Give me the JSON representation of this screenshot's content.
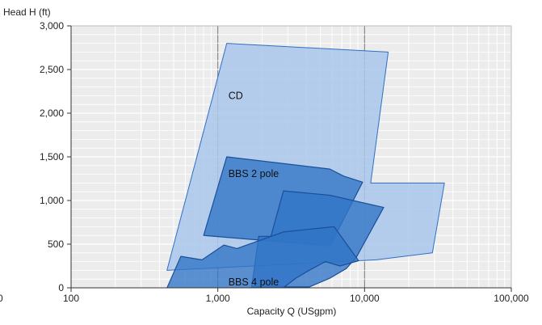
{
  "chart_data": {
    "type": "area",
    "title": "",
    "xlabel": "Capacity Q (USgpm)",
    "ylabel": "Head H (ft)",
    "x_scale": "log",
    "xlim": [
      100,
      100000
    ],
    "ylim": [
      0,
      3000
    ],
    "x_ticks": [
      100,
      1000,
      10000,
      100000
    ],
    "x_tick_labels": [
      "100",
      "1,000",
      "10,000",
      "100,000"
    ],
    "x_edge_label": "0",
    "y_ticks": [
      0,
      500,
      1000,
      1500,
      2000,
      2500,
      3000
    ],
    "y_tick_labels": [
      "0",
      "500",
      "1,000",
      "1,500",
      "2,000",
      "2,500",
      "3,000"
    ],
    "grid": true,
    "legend": "none",
    "series": [
      {
        "name": "CD",
        "color": "#aac7eb",
        "stroke": "#2e6fc4",
        "points": [
          [
            1150,
            2800
          ],
          [
            14500,
            2700
          ],
          [
            11000,
            1200
          ],
          [
            35000,
            1200
          ],
          [
            29000,
            400
          ],
          [
            12000,
            320
          ],
          [
            450,
            200
          ]
        ]
      },
      {
        "name": "BBS 2 pole",
        "color": "#2f74c6",
        "stroke": "#1a4f9a",
        "points": [
          [
            1150,
            1500
          ],
          [
            5800,
            1360
          ],
          [
            7200,
            1280
          ],
          [
            9700,
            1210
          ],
          [
            5800,
            480
          ],
          [
            800,
            600
          ]
        ]
      },
      {
        "name": "",
        "color": "#2f74c6",
        "stroke": "#1a4f9a",
        "points": [
          [
            2800,
            1110
          ],
          [
            5800,
            1060
          ],
          [
            13500,
            920
          ],
          [
            8800,
            350
          ],
          [
            7500,
            220
          ],
          [
            5800,
            110
          ],
          [
            4200,
            10
          ],
          [
            1700,
            10
          ],
          [
            1900,
            590
          ],
          [
            2300,
            590
          ]
        ]
      },
      {
        "name": "BBS 4 pole",
        "color": "#2f74c6",
        "stroke": "#1a4f9a",
        "points": [
          [
            560,
            360
          ],
          [
            780,
            320
          ],
          [
            1100,
            490
          ],
          [
            1350,
            450
          ],
          [
            2800,
            640
          ],
          [
            6200,
            700
          ],
          [
            9100,
            310
          ],
          [
            6800,
            250
          ],
          [
            5400,
            300
          ],
          [
            4300,
            210
          ],
          [
            3400,
            110
          ],
          [
            2600,
            -40
          ],
          [
            440,
            -40
          ]
        ]
      }
    ],
    "annotations": [
      {
        "text": "CD",
        "x": 1150,
        "y": 2160
      },
      {
        "text": "BBS 2 pole",
        "x": 1150,
        "y": 1270
      },
      {
        "text": "BBS 4 pole",
        "x": 1150,
        "y": 30
      }
    ]
  }
}
